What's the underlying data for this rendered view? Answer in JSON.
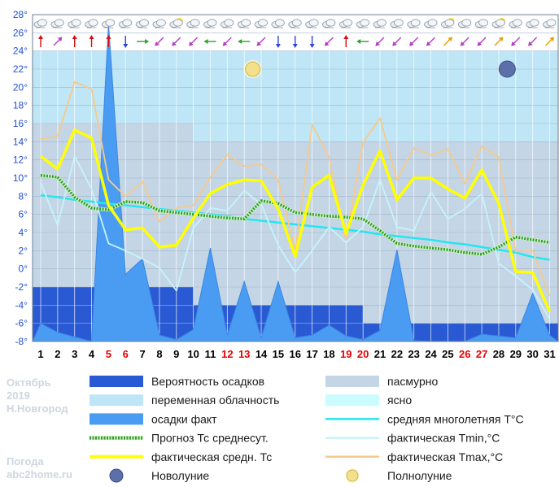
{
  "side_info": {
    "month": "Октябрь",
    "year": "2019",
    "city": "Н.Новгород"
  },
  "watermark": {
    "line1": "Погода",
    "line2": "abc2home.ru"
  },
  "legend": [
    {
      "key": "precip_prob",
      "label": "Вероятность осадков",
      "kind": "rect",
      "color": "#2a5ad3"
    },
    {
      "key": "overcast",
      "label": "пасмурно",
      "kind": "rect",
      "color": "#c4d6e6"
    },
    {
      "key": "variable",
      "label": "переменная облачность",
      "kind": "rect",
      "color": "#bfe6f6"
    },
    {
      "key": "clear",
      "label": "ясно",
      "kind": "rect",
      "color": "#c9fbff"
    },
    {
      "key": "precip_fact",
      "label": "осадки факт",
      "kind": "rect",
      "color": "#4a9cf2"
    },
    {
      "key": "mean_longterm",
      "label": "средняя многолетняя T°C",
      "kind": "line",
      "color": "#23e6ef"
    },
    {
      "key": "forecast",
      "label": "Прогноз Тс среднесут.",
      "kind": "dotted",
      "color": "#2e9f2e"
    },
    {
      "key": "tmin",
      "label": "фактическая Tmin,°C",
      "kind": "line",
      "color": "#c6f3fb"
    },
    {
      "key": "tavg",
      "label": "фактическая средн. Тс",
      "kind": "thick",
      "color": "#ffff00"
    },
    {
      "key": "tmax",
      "label": "фактическая Tmax,°C",
      "kind": "line",
      "color": "#f6c98b"
    },
    {
      "key": "new_moon",
      "label": "Новолуние",
      "kind": "moon_new",
      "color": "#5c6fa8"
    },
    {
      "key": "full_moon",
      "label": "Полнолуние",
      "kind": "moon_full",
      "color": "#f3e08a"
    }
  ],
  "chart_data": {
    "type": "line",
    "ylim": [
      -8,
      28
    ],
    "y_ticks": [
      28,
      26,
      24,
      22,
      20,
      18,
      16,
      14,
      12,
      10,
      8,
      6,
      4,
      2,
      0,
      -2,
      -4,
      -6,
      -8
    ],
    "y_tick_labels": [
      "28°",
      "26°",
      "24°",
      "22°",
      "20°",
      "18°",
      "16°",
      "14°",
      "12°",
      "10°",
      "8°",
      "6°",
      "4°",
      "2°",
      "0°",
      "-2°",
      "-4°",
      "-6°",
      "-8°"
    ],
    "x": [
      1,
      2,
      3,
      4,
      5,
      6,
      7,
      8,
      9,
      10,
      11,
      12,
      13,
      14,
      15,
      16,
      17,
      18,
      19,
      20,
      21,
      22,
      23,
      24,
      25,
      26,
      27,
      28,
      29,
      30,
      31
    ],
    "x_labels": [
      "1",
      "2",
      "3",
      "4",
      "5",
      "6",
      "7",
      "8",
      "9",
      "10",
      "11",
      "12",
      "13",
      "14",
      "15",
      "16",
      "17",
      "18",
      "19",
      "20",
      "21",
      "22",
      "23",
      "24",
      "25",
      "26",
      "27",
      "28",
      "29",
      "30",
      "31"
    ],
    "weekend_days": [
      5,
      6,
      12,
      13,
      19,
      20,
      26,
      27
    ],
    "weekend_color": "#e60000",
    "weekday_color": "#000000",
    "series": [
      {
        "key": "tmax",
        "values": [
          14.3,
          14.6,
          20.6,
          19.8,
          9.8,
          8.0,
          9.6,
          5.2,
          6.7,
          7.0,
          10.1,
          12.6,
          11.3,
          11.5,
          9.8,
          2.0,
          15.9,
          12.3,
          3.2,
          13.9,
          16.6,
          9.8,
          13.3,
          12.5,
          13.2,
          9.4,
          13.5,
          12.3,
          1.9,
          2.0,
          -3.0
        ]
      },
      {
        "key": "tmin",
        "values": [
          9.5,
          4.8,
          12.4,
          8.8,
          2.8,
          2.0,
          1.1,
          0.1,
          -2.4,
          4.5,
          6.7,
          6.4,
          8.6,
          7.1,
          2.6,
          -0.4,
          2.0,
          4.6,
          2.9,
          4.6,
          9.8,
          4.6,
          4.2,
          8.5,
          5.5,
          6.6,
          8.3,
          0.6,
          -0.8,
          -2.3,
          -5.5
        ]
      },
      {
        "key": "tavg",
        "values": [
          12.4,
          11.0,
          15.3,
          14.4,
          7.0,
          4.3,
          4.5,
          2.4,
          2.6,
          5.6,
          8.3,
          9.3,
          9.8,
          9.7,
          6.6,
          1.4,
          9.0,
          10.3,
          3.9,
          9.2,
          13.0,
          7.6,
          10.0,
          10.0,
          8.8,
          7.8,
          10.9,
          7.2,
          -0.3,
          -0.4,
          -4.7
        ]
      },
      {
        "key": "forecast",
        "values": [
          10.3,
          10.1,
          7.9,
          6.7,
          6.5,
          7.4,
          7.3,
          6.4,
          6.2,
          6.0,
          5.8,
          5.6,
          5.5,
          7.5,
          7.2,
          6.2,
          6.0,
          5.8,
          5.7,
          5.5,
          4.2,
          2.8,
          2.5,
          2.3,
          2.1,
          1.8,
          1.6,
          2.4,
          3.5,
          3.2,
          2.9
        ]
      },
      {
        "key": "mean_longterm",
        "values": [
          8.1,
          7.9,
          7.6,
          7.4,
          7.2,
          7.0,
          6.8,
          6.6,
          6.4,
          6.2,
          6.0,
          5.8,
          5.5,
          5.3,
          5.1,
          4.9,
          4.7,
          4.5,
          4.3,
          4.1,
          3.8,
          3.6,
          3.4,
          3.2,
          2.9,
          2.7,
          2.4,
          2.1,
          1.8,
          1.3,
          1.0
        ]
      }
    ],
    "precip_fact": [
      -6,
      -7,
      -7.5,
      -8,
      27,
      -0.6,
      1.1,
      -7.3,
      -7.8,
      -6.7,
      2.3,
      -7.3,
      -1.4,
      -7.6,
      -1.4,
      -7.6,
      -7.3,
      -6.2,
      -7.4,
      -7.8,
      -6.8,
      2.1,
      -7.9,
      -8,
      -8,
      -8,
      -7.2,
      -7.4,
      -7.6,
      -2.7,
      -7.3
    ],
    "cloud_bands": [
      {
        "key": "variable",
        "from_day": 1,
        "to_day": 31,
        "y_from": 16,
        "y_to": 24
      },
      {
        "key": "overcast",
        "from_day": 1,
        "to_day": 10,
        "y_from": -2,
        "y_to": 16
      },
      {
        "key": "variable",
        "from_day": 10,
        "to_day": 31,
        "y_from": 14,
        "y_to": 16
      },
      {
        "key": "overcast",
        "from_day": 10,
        "to_day": 31,
        "y_from": -6,
        "y_to": 14
      }
    ],
    "precip_prob_bands": [
      {
        "from_day": 1,
        "to_day": 10,
        "y_from": -8,
        "y_to": -2
      },
      {
        "from_day": 10,
        "to_day": 20,
        "y_from": -8,
        "y_to": -4
      },
      {
        "from_day": 20,
        "to_day": 31,
        "y_from": -8,
        "y_to": -6
      }
    ],
    "moons": [
      {
        "key": "full_moon",
        "day": 13.5,
        "y": 22
      },
      {
        "key": "new_moon",
        "day": 28.5,
        "y": 22
      }
    ],
    "weather_icons": [
      "cloud-icon",
      "cloud-icon",
      "cloud-icon",
      "cloud-icon",
      "cloud-icon",
      "cloud-icon",
      "cloud-icon",
      "cloud-icon",
      "sun-cloud-icon",
      "cloud-icon",
      "cloud-icon",
      "cloud-icon",
      "cloud-icon",
      "cloud-icon",
      "cloud-icon",
      "cloud-icon",
      "cloud-icon",
      "cloud-icon",
      "cloud-icon",
      "cloud-icon",
      "cloud-icon",
      "cloud-icon",
      "cloud-icon",
      "cloud-icon",
      "sun-cloud-icon",
      "cloud-icon",
      "cloud-icon",
      "sun-cloud-icon",
      "cloud-icon",
      "cloud-icon",
      "cloud-icon"
    ],
    "wind_directions_deg": [
      0,
      45,
      0,
      0,
      0,
      180,
      90,
      225,
      225,
      225,
      270,
      225,
      270,
      225,
      180,
      180,
      180,
      225,
      0,
      270,
      225,
      225,
      225,
      225,
      45,
      225,
      225,
      45,
      225,
      225,
      45
    ],
    "wind_colors": [
      "#d01010",
      "#b040c0",
      "#d01010",
      "#d01010",
      "#d01010",
      "#2a44d8",
      "#2e9f2e",
      "#b040c0",
      "#b040c0",
      "#b040c0",
      "#2e9f2e",
      "#b040c0",
      "#2e9f2e",
      "#b040c0",
      "#2a44d8",
      "#2a44d8",
      "#2a44d8",
      "#b040c0",
      "#d01010",
      "#2e9f2e",
      "#b040c0",
      "#b040c0",
      "#b040c0",
      "#b040c0",
      "#e0a000",
      "#b040c0",
      "#b040c0",
      "#e0a000",
      "#b040c0",
      "#b040c0",
      "#e0a000"
    ]
  }
}
